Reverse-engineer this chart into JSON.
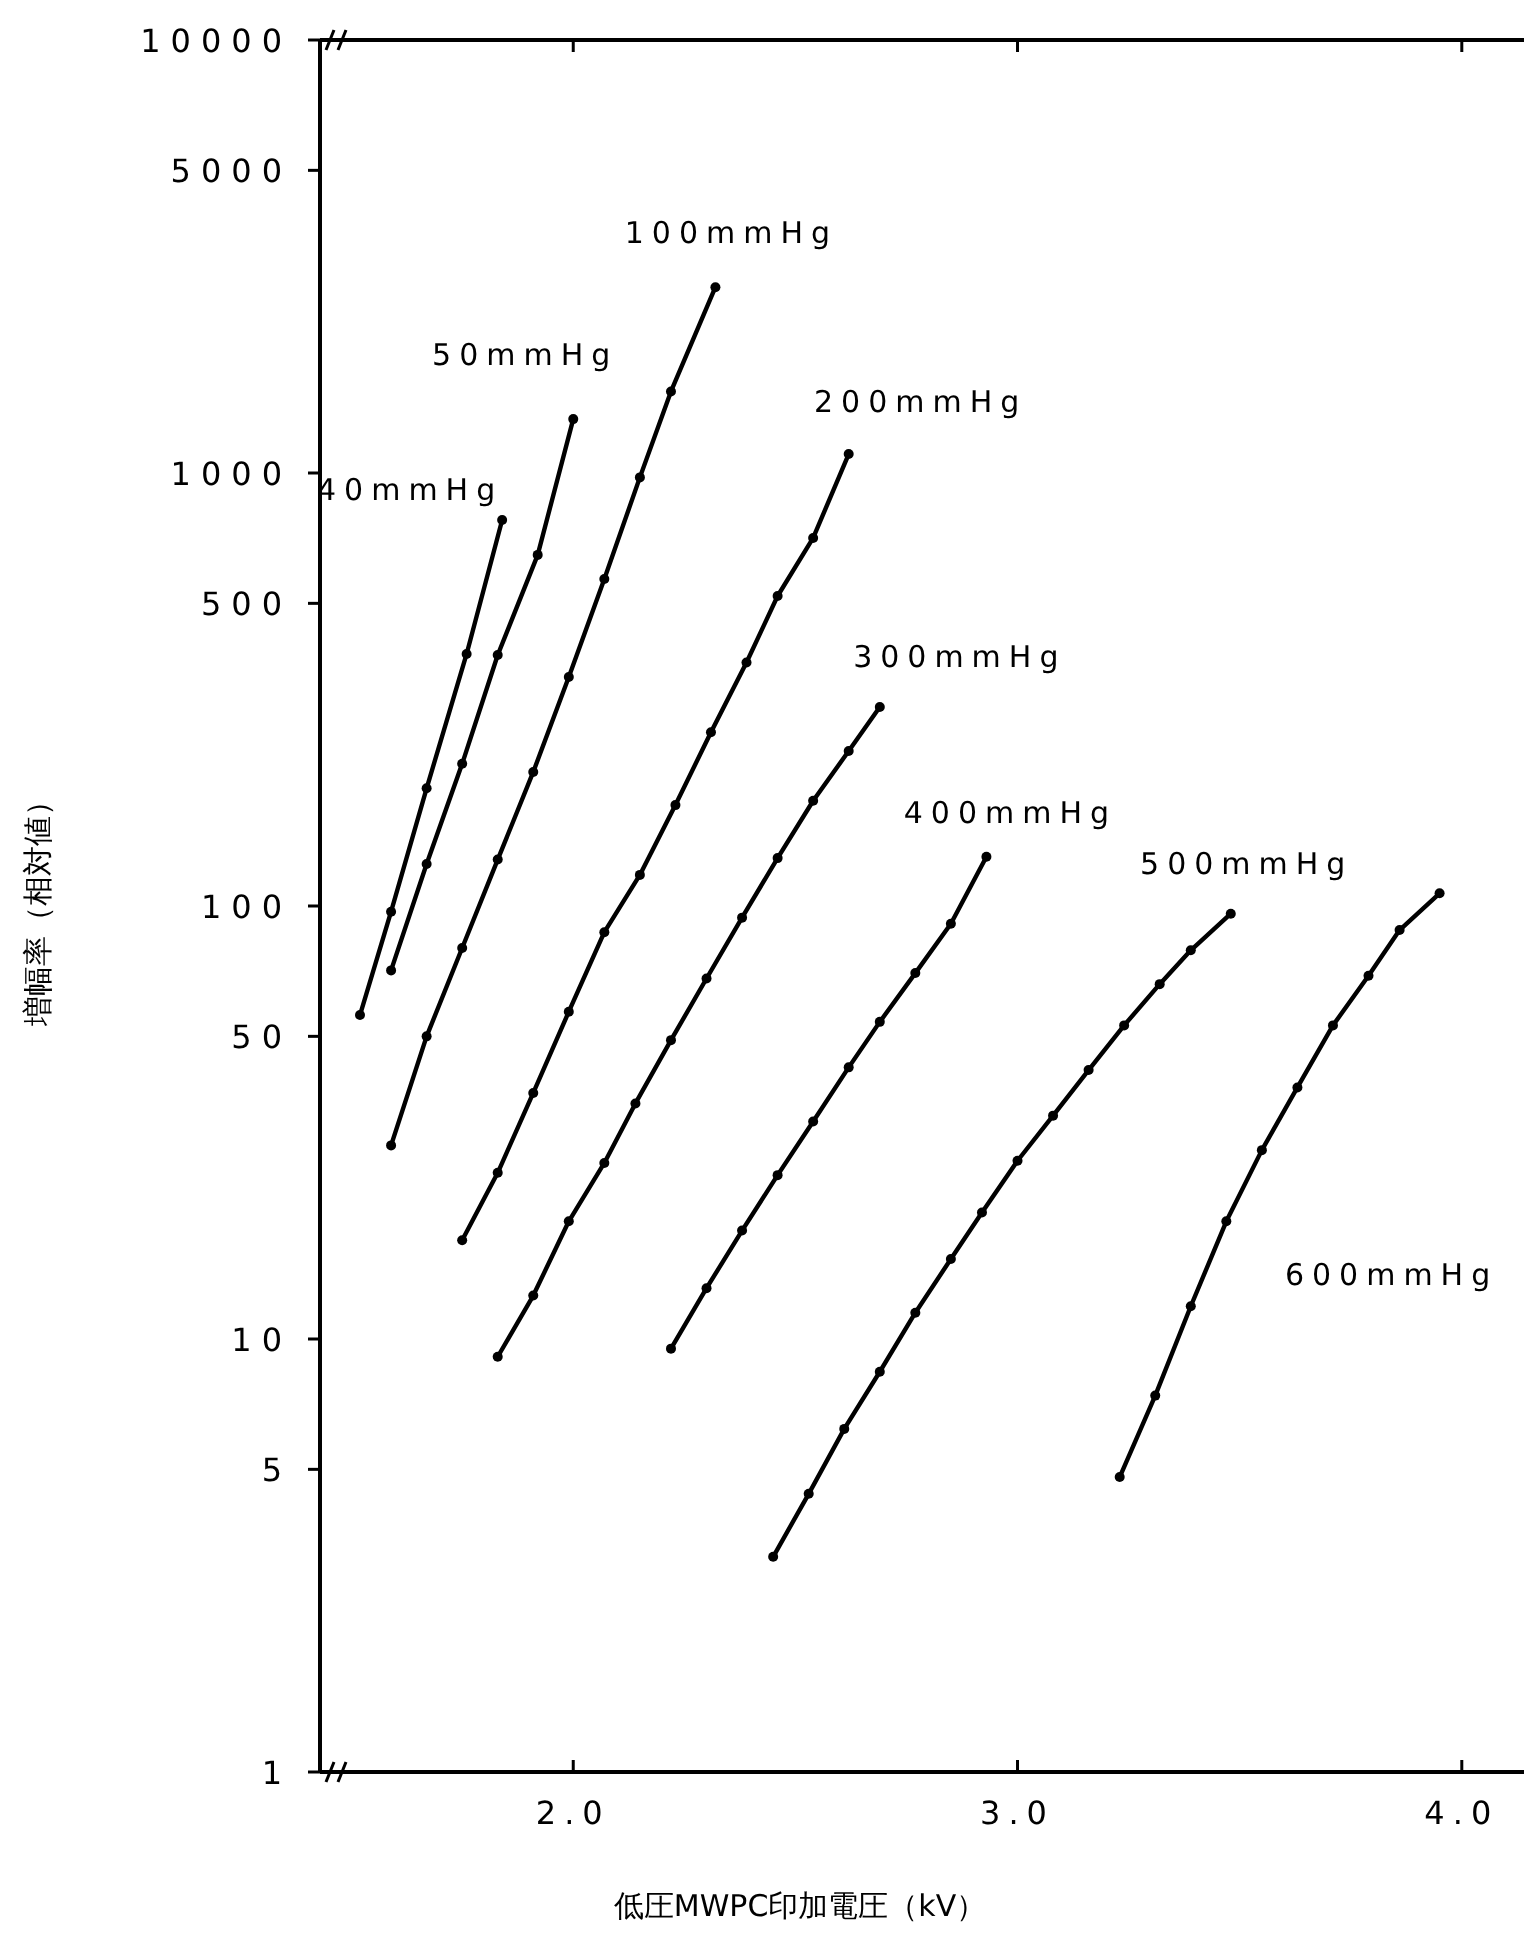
{
  "chart_data": {
    "type": "line",
    "xlabel": "低圧MWPC印加電圧（kV）",
    "ylabel": "増幅率（相対値）",
    "log": "y",
    "grid": false,
    "marker": "circle",
    "line_style": "solid",
    "xlim": [
      1.43,
      4.14
    ],
    "xticks": [
      {
        "value": 2,
        "label": "2.0"
      },
      {
        "value": 3,
        "label": "3.0"
      },
      {
        "value": 4,
        "label": "4.0"
      }
    ],
    "ylim": [
      1,
      10000
    ],
    "yticks": [
      1,
      5,
      10,
      50,
      100,
      500,
      1000,
      5000,
      10000
    ],
    "series": [
      {
        "name": "40mmHg",
        "color": "#000000",
        "x": [
          1.52,
          1.59,
          1.67,
          1.76,
          1.84
        ],
        "values": [
          56,
          97,
          187,
          382,
          779
        ]
      },
      {
        "name": "50mmHg",
        "color": "#000000",
        "x": [
          1.59,
          1.67,
          1.75,
          1.83,
          1.92,
          2.0
        ],
        "values": [
          71,
          125,
          213,
          380,
          647,
          1332
        ]
      },
      {
        "name": "100mmHg",
        "color": "#000000",
        "x": [
          1.59,
          1.67,
          1.75,
          1.83,
          1.91,
          1.99,
          2.07,
          2.15,
          2.22,
          2.32
        ],
        "values": [
          28,
          50,
          80,
          128,
          204,
          338,
          569,
          977,
          1543,
          2686
        ]
      },
      {
        "name": "200mmHg",
        "color": "#000000",
        "x": [
          1.75,
          1.83,
          1.91,
          1.99,
          2.07,
          2.15,
          2.23,
          2.31,
          2.39,
          2.46,
          2.54,
          2.62
        ],
        "values": [
          16.9,
          24.2,
          37,
          57,
          87,
          118,
          171,
          252,
          365,
          520,
          708,
          1106
        ]
      },
      {
        "name": "300mmHg",
        "color": "#000000",
        "x": [
          1.83,
          1.91,
          1.99,
          2.07,
          2.14,
          2.22,
          2.3,
          2.38,
          2.46,
          2.54,
          2.62,
          2.69
        ],
        "values": [
          9.1,
          12.6,
          18.7,
          25.5,
          35,
          49,
          68,
          94,
          129,
          175,
          228,
          288
        ]
      },
      {
        "name": "400mmHg",
        "color": "#000000",
        "x": [
          2.22,
          2.3,
          2.38,
          2.46,
          2.54,
          2.62,
          2.69,
          2.77,
          2.85,
          2.93
        ],
        "values": [
          9.5,
          13.1,
          17.8,
          23.9,
          31.8,
          42.4,
          54,
          70,
          91,
          130
        ]
      },
      {
        "name": "500mmHg",
        "color": "#000000",
        "x": [
          2.45,
          2.53,
          2.61,
          2.69,
          2.77,
          2.85,
          2.92,
          3.0,
          3.08,
          3.16,
          3.24,
          3.32,
          3.39,
          3.48
        ],
        "values": [
          3.14,
          4.39,
          6.2,
          8.4,
          11.5,
          15.3,
          19.6,
          25.8,
          32.8,
          41.8,
          53,
          66,
          79,
          96
        ]
      },
      {
        "name": "600mmHg",
        "color": "#000000",
        "x": [
          3.23,
          3.31,
          3.39,
          3.47,
          3.55,
          3.63,
          3.71,
          3.79,
          3.86,
          3.95
        ],
        "values": [
          4.8,
          7.4,
          11.9,
          18.7,
          27.3,
          38.1,
          53,
          69,
          88,
          107
        ]
      }
    ]
  }
}
